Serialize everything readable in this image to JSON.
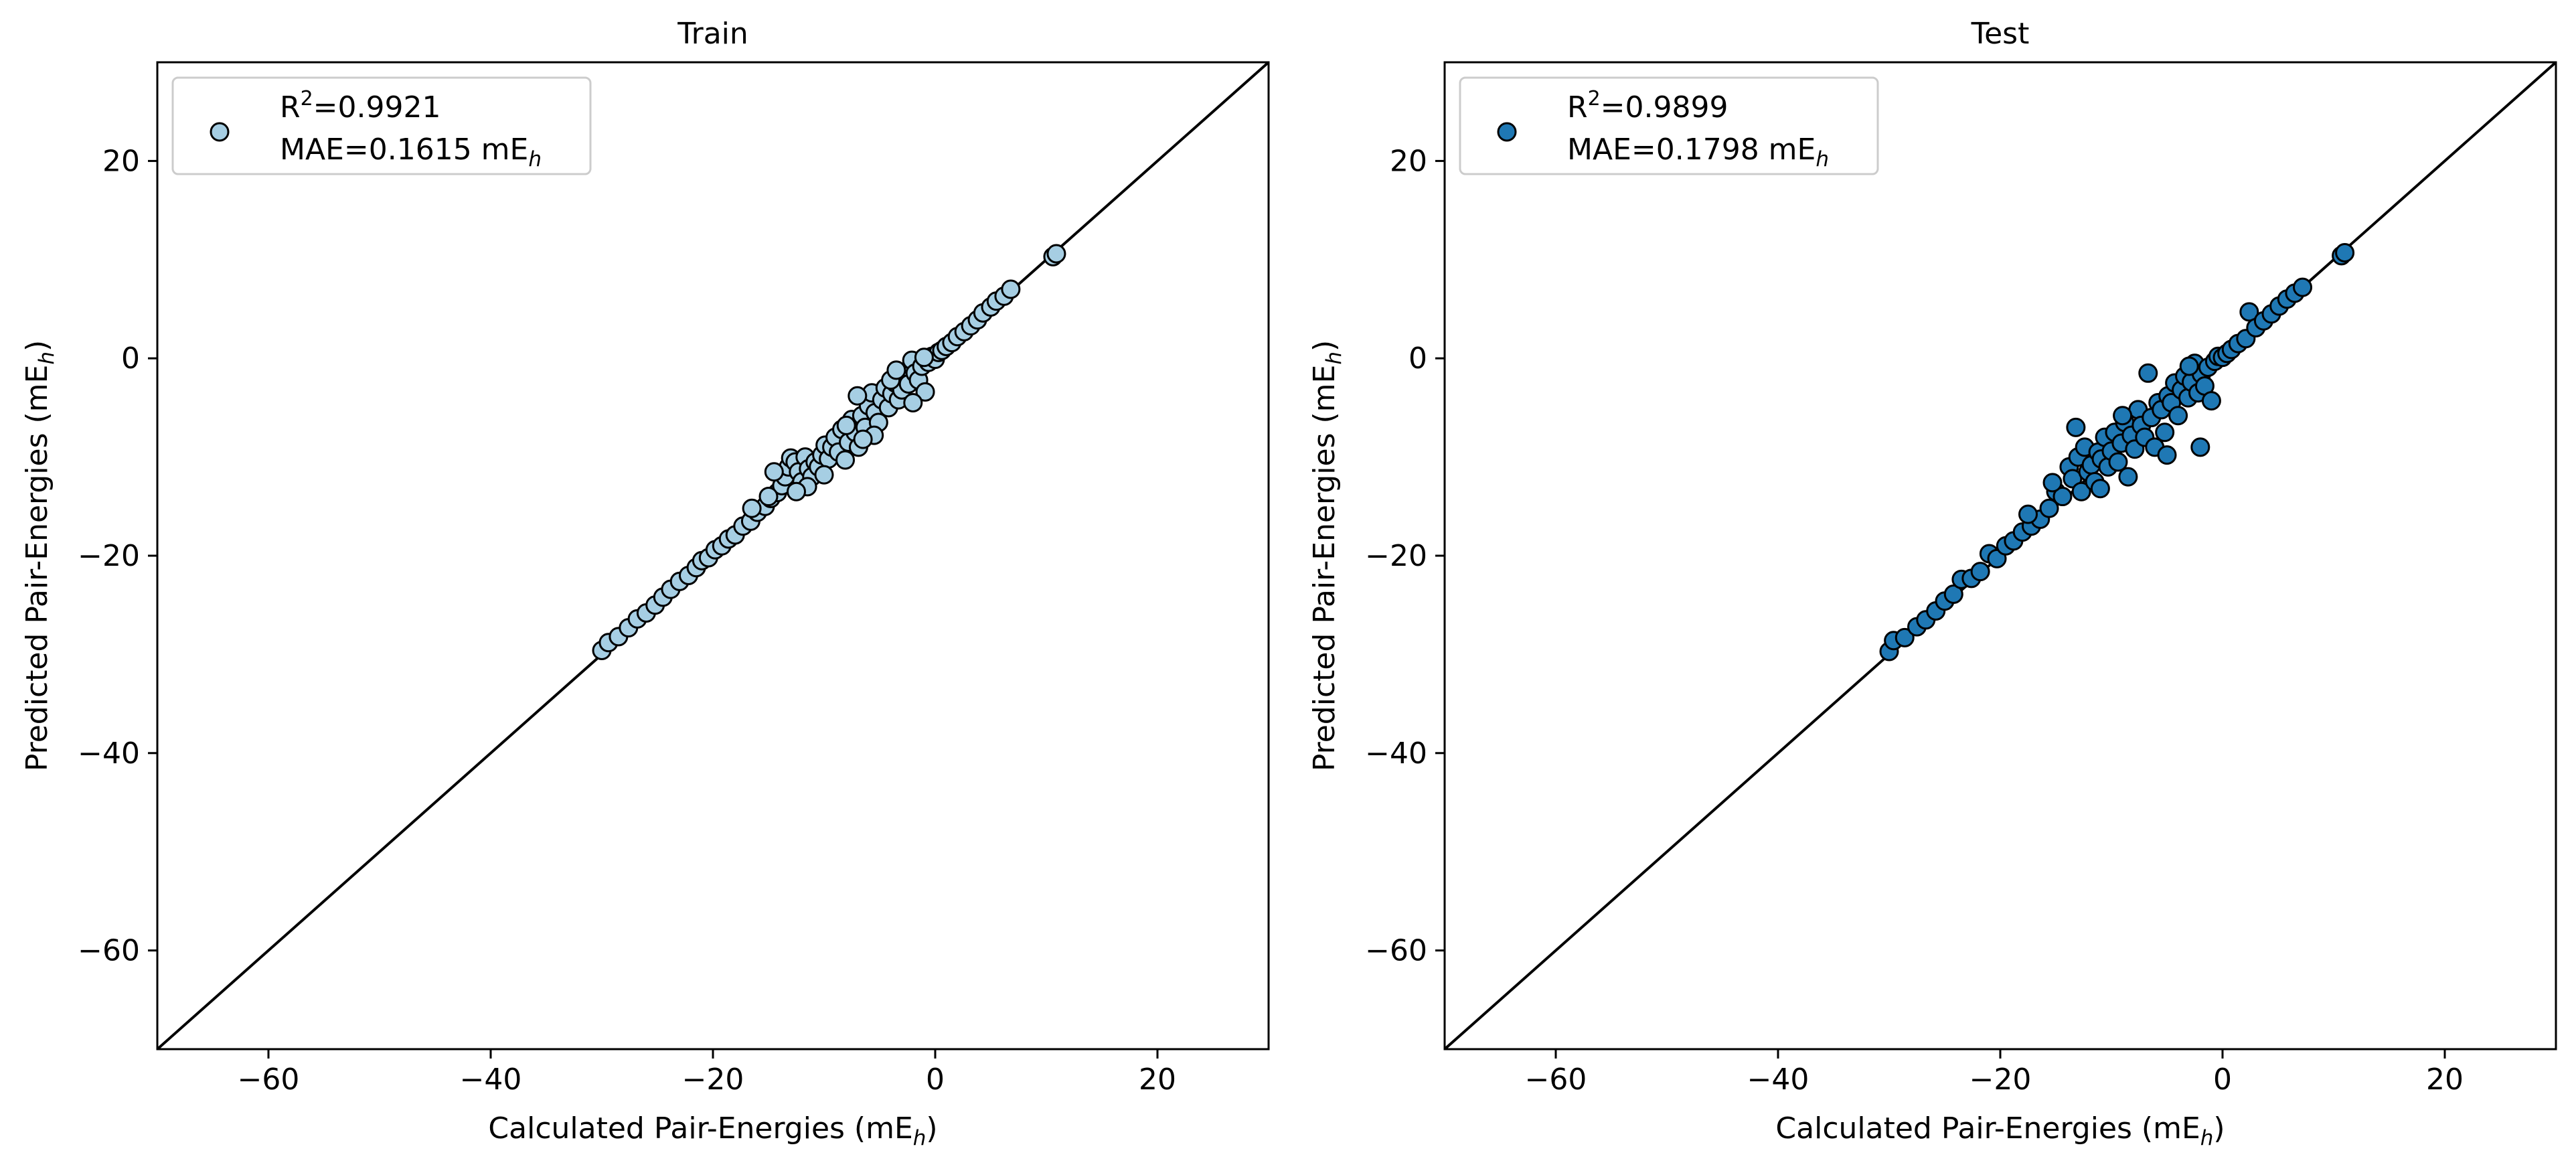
{
  "chart_data": [
    {
      "type": "scatter",
      "title": "Train",
      "xlabel": "Calculated Pair-Energies (mE",
      "xlabel_sub": "h",
      "xlabel_end": ")",
      "ylabel": "Predicted Pair-Energies (mE",
      "ylabel_sub": "h",
      "ylabel_end": ")",
      "xlim": [
        -70,
        30
      ],
      "ylim": [
        -70,
        30
      ],
      "xticks": [
        -60,
        -40,
        -20,
        0,
        20
      ],
      "yticks": [
        -60,
        -40,
        -20,
        0,
        20
      ],
      "tick_labels": [
        "−60",
        "−40",
        "−20",
        "0",
        "20"
      ],
      "grid": false,
      "legend_position": "top-left",
      "legend": {
        "r2_prefix": "R",
        "r2_sup": "2",
        "r2_value": "=0.9921",
        "mae_text": "MAE=0.1615 mE",
        "mae_sub": "h"
      },
      "marker_color": "#a6cee3",
      "edge_color": "#000000",
      "reference_line": {
        "from": [
          -70,
          -70
        ],
        "to": [
          30,
          30
        ]
      },
      "series": [
        {
          "points": [
            [
              -30,
              -29.6
            ],
            [
              -29.4,
              -28.8
            ],
            [
              -28.5,
              -28.2
            ],
            [
              -27.6,
              -27.3
            ],
            [
              -26.8,
              -26.4
            ],
            [
              -26.0,
              -25.8
            ],
            [
              -25.2,
              -25.0
            ],
            [
              -24.5,
              -24.2
            ],
            [
              -23.8,
              -23.4
            ],
            [
              -23.0,
              -22.6
            ],
            [
              -22.2,
              -22.0
            ],
            [
              -21.5,
              -21.2
            ],
            [
              -21.0,
              -20.5
            ],
            [
              -20.4,
              -20.2
            ],
            [
              -19.8,
              -19.4
            ],
            [
              -19.2,
              -19.0
            ],
            [
              -18.6,
              -18.3
            ],
            [
              -18.0,
              -17.9
            ],
            [
              -17.3,
              -17.0
            ],
            [
              -16.6,
              -16.5
            ],
            [
              -16.0,
              -15.6
            ],
            [
              -15.3,
              -15.0
            ],
            [
              -14.8,
              -14.2
            ],
            [
              -14.2,
              -13.6
            ],
            [
              -13.8,
              -12.9
            ],
            [
              -13.5,
              -12.0
            ],
            [
              -13.2,
              -11.0
            ],
            [
              -13.0,
              -10.1
            ],
            [
              -12.6,
              -10.5
            ],
            [
              -12.3,
              -11.5
            ],
            [
              -12.0,
              -12.5
            ],
            [
              -11.7,
              -10.0
            ],
            [
              -11.4,
              -11.2
            ],
            [
              -11.1,
              -12.0
            ],
            [
              -10.8,
              -10.5
            ],
            [
              -10.5,
              -11.0
            ],
            [
              -10.2,
              -9.8
            ],
            [
              -9.9,
              -8.8
            ],
            [
              -9.6,
              -10.2
            ],
            [
              -9.3,
              -9.0
            ],
            [
              -9.0,
              -8.0
            ],
            [
              -8.7,
              -9.5
            ],
            [
              -8.4,
              -7.2
            ],
            [
              -8.1,
              -10.3
            ],
            [
              -7.8,
              -8.5
            ],
            [
              -7.5,
              -6.2
            ],
            [
              -7.2,
              -7.5
            ],
            [
              -6.9,
              -9.0
            ],
            [
              -6.6,
              -5.8
            ],
            [
              -6.3,
              -7.0
            ],
            [
              -6.0,
              -4.8
            ],
            [
              -5.7,
              -3.5
            ],
            [
              -5.4,
              -5.5
            ],
            [
              -5.1,
              -6.5
            ],
            [
              -4.8,
              -4.2
            ],
            [
              -4.5,
              -3.0
            ],
            [
              -4.2,
              -5.0
            ],
            [
              -3.9,
              -3.6
            ],
            [
              -3.6,
              -2.5
            ],
            [
              -3.3,
              -4.2
            ],
            [
              -3.0,
              -3.2
            ],
            [
              -2.7,
              -1.8
            ],
            [
              -2.4,
              -2.6
            ],
            [
              -2.1,
              -0.2
            ],
            [
              -1.8,
              -1.5
            ],
            [
              -1.5,
              -2.2
            ],
            [
              -1.2,
              -0.8
            ],
            [
              -0.9,
              -3.4
            ],
            [
              -0.6,
              -0.4
            ],
            [
              -0.3,
              0.2
            ],
            [
              0,
              -0.1
            ],
            [
              0.3,
              0.6
            ],
            [
              0.6,
              0.8
            ],
            [
              1.0,
              1.2
            ],
            [
              1.5,
              1.6
            ],
            [
              2.0,
              2.2
            ],
            [
              2.6,
              2.7
            ],
            [
              3.2,
              3.3
            ],
            [
              3.8,
              3.9
            ],
            [
              4.3,
              4.6
            ],
            [
              5.0,
              5.2
            ],
            [
              5.5,
              5.8
            ],
            [
              6.2,
              6.3
            ],
            [
              6.8,
              7.0
            ],
            [
              10.6,
              10.3
            ],
            [
              10.9,
              10.6
            ],
            [
              -16.5,
              -15.2
            ],
            [
              -15.0,
              -14.0
            ],
            [
              -11.5,
              -13.0
            ],
            [
              -10.0,
              -11.8
            ],
            [
              -8.0,
              -6.8
            ],
            [
              -5.5,
              -7.8
            ],
            [
              -4.0,
              -2.2
            ],
            [
              -2.0,
              -4.5
            ],
            [
              -1.0,
              0.1
            ],
            [
              -14.5,
              -11.5
            ],
            [
              -12.5,
              -13.5
            ],
            [
              -7.0,
              -3.8
            ],
            [
              -6.5,
              -8.2
            ],
            [
              -3.5,
              -1.2
            ]
          ]
        }
      ]
    },
    {
      "type": "scatter",
      "title": "Test",
      "xlabel": "Calculated Pair-Energies (mE",
      "xlabel_sub": "h",
      "xlabel_end": ")",
      "ylabel": "Predicted Pair-Energies (mE",
      "ylabel_sub": "h",
      "ylabel_end": ")",
      "xlim": [
        -70,
        30
      ],
      "ylim": [
        -70,
        30
      ],
      "xticks": [
        -60,
        -40,
        -20,
        0,
        20
      ],
      "yticks": [
        -60,
        -40,
        -20,
        0,
        20
      ],
      "tick_labels": [
        "−60",
        "−40",
        "−20",
        "0",
        "20"
      ],
      "grid": false,
      "legend_position": "top-left",
      "legend": {
        "r2_prefix": "R",
        "r2_sup": "2",
        "r2_value": "=0.9899",
        "mae_text": "MAE=0.1798 mE",
        "mae_sub": "h"
      },
      "marker_color": "#1f78b4",
      "edge_color": "#000000",
      "reference_line": {
        "from": [
          -70,
          -70
        ],
        "to": [
          30,
          30
        ]
      },
      "series": [
        {
          "points": [
            [
              -30,
              -29.7
            ],
            [
              -29.6,
              -28.6
            ],
            [
              -28.6,
              -28.3
            ],
            [
              -27.5,
              -27.2
            ],
            [
              -26.7,
              -26.5
            ],
            [
              -25.8,
              -25.6
            ],
            [
              -25.0,
              -24.6
            ],
            [
              -24.2,
              -23.9
            ],
            [
              -23.5,
              -22.4
            ],
            [
              -22.6,
              -22.3
            ],
            [
              -21.8,
              -21.6
            ],
            [
              -21.0,
              -19.8
            ],
            [
              -20.3,
              -20.3
            ],
            [
              -19.5,
              -19.0
            ],
            [
              -18.8,
              -18.5
            ],
            [
              -18.0,
              -17.6
            ],
            [
              -17.2,
              -17.0
            ],
            [
              -16.4,
              -16.3
            ],
            [
              -15.6,
              -15.2
            ],
            [
              -15.0,
              -13.5
            ],
            [
              -14.4,
              -14.0
            ],
            [
              -13.8,
              -11.0
            ],
            [
              -13.5,
              -12.2
            ],
            [
              -13.2,
              -7.0
            ],
            [
              -13.0,
              -10.0
            ],
            [
              -12.7,
              -13.5
            ],
            [
              -12.4,
              -9.0
            ],
            [
              -12.1,
              -11.5
            ],
            [
              -11.8,
              -10.8
            ],
            [
              -11.5,
              -12.5
            ],
            [
              -11.2,
              -9.5
            ],
            [
              -10.9,
              -10.2
            ],
            [
              -10.6,
              -8.0
            ],
            [
              -10.3,
              -11.0
            ],
            [
              -10.0,
              -9.4
            ],
            [
              -9.7,
              -7.5
            ],
            [
              -9.4,
              -10.5
            ],
            [
              -9.1,
              -8.6
            ],
            [
              -8.8,
              -6.5
            ],
            [
              -8.5,
              -12.0
            ],
            [
              -8.2,
              -7.8
            ],
            [
              -7.9,
              -9.2
            ],
            [
              -7.6,
              -5.2
            ],
            [
              -7.3,
              -6.8
            ],
            [
              -7.0,
              -8.0
            ],
            [
              -6.7,
              -1.5
            ],
            [
              -6.4,
              -6.0
            ],
            [
              -6.1,
              -9.0
            ],
            [
              -5.8,
              -4.5
            ],
            [
              -5.5,
              -5.2
            ],
            [
              -5.2,
              -7.5
            ],
            [
              -4.9,
              -3.8
            ],
            [
              -4.6,
              -4.5
            ],
            [
              -4.3,
              -2.5
            ],
            [
              -4.0,
              -5.8
            ],
            [
              -3.7,
              -3.2
            ],
            [
              -3.4,
              -1.8
            ],
            [
              -3.1,
              -4.0
            ],
            [
              -2.8,
              -2.4
            ],
            [
              -2.5,
              -0.5
            ],
            [
              -2.2,
              -3.5
            ],
            [
              -1.9,
              -1.6
            ],
            [
              -1.6,
              -2.8
            ],
            [
              -1.3,
              -0.9
            ],
            [
              -1.0,
              -4.3
            ],
            [
              -0.7,
              -0.3
            ],
            [
              -0.4,
              0.2
            ],
            [
              0,
              0.1
            ],
            [
              0.4,
              0.5
            ],
            [
              0.8,
              0.9
            ],
            [
              1.4,
              1.5
            ],
            [
              2.1,
              2.0
            ],
            [
              2.4,
              4.7
            ],
            [
              3.0,
              3.1
            ],
            [
              3.7,
              3.8
            ],
            [
              4.4,
              4.5
            ],
            [
              5.1,
              5.3
            ],
            [
              5.8,
              6.0
            ],
            [
              6.5,
              6.6
            ],
            [
              7.2,
              7.2
            ],
            [
              10.7,
              10.4
            ],
            [
              11.0,
              10.7
            ],
            [
              -2.0,
              -9.0
            ],
            [
              -17.5,
              -15.8
            ],
            [
              -15.3,
              -12.6
            ],
            [
              -11.0,
              -13.2
            ],
            [
              -9.0,
              -5.8
            ],
            [
              -5.0,
              -9.8
            ],
            [
              -3.0,
              -0.8
            ]
          ]
        }
      ]
    }
  ]
}
